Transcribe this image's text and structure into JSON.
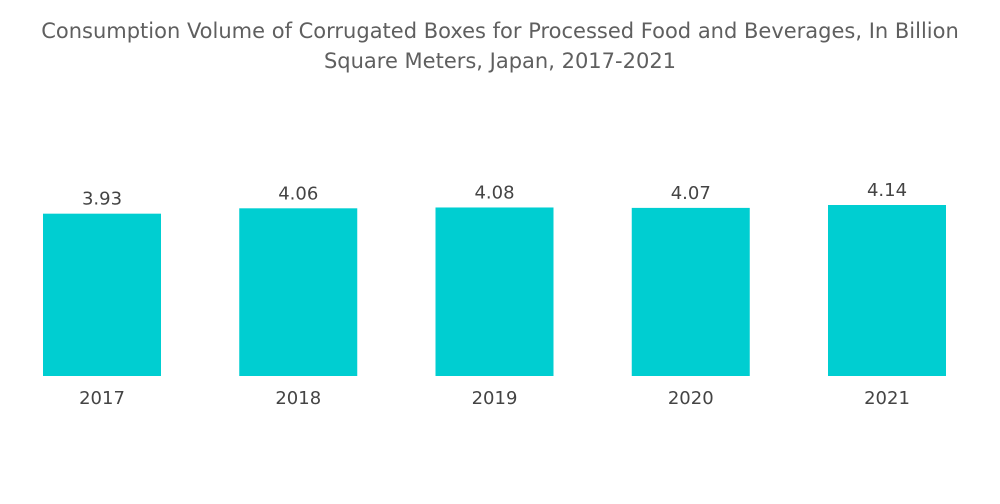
{
  "chart_data": {
    "type": "bar",
    "title": "Consumption Volume of Corrugated Boxes for Processed Food and Beverages, In Billion Square Meters, Japan, 2017-2021",
    "title_lines": [
      "Consumption Volume of Corrugated Boxes for Processed Food and Beverages, In Billion",
      "Square Meters, Japan, 2017-2021"
    ],
    "categories": [
      "2017",
      "2018",
      "2019",
      "2020",
      "2021"
    ],
    "values": [
      3.93,
      4.06,
      4.08,
      4.07,
      4.14
    ],
    "value_labels": [
      "3.93",
      "4.06",
      "4.08",
      "4.07",
      "4.14"
    ],
    "xlabel": "",
    "ylabel": "",
    "ylim": [
      0,
      4.14
    ],
    "grid": false,
    "legend": "none",
    "bar_color": "#00ced1"
  }
}
